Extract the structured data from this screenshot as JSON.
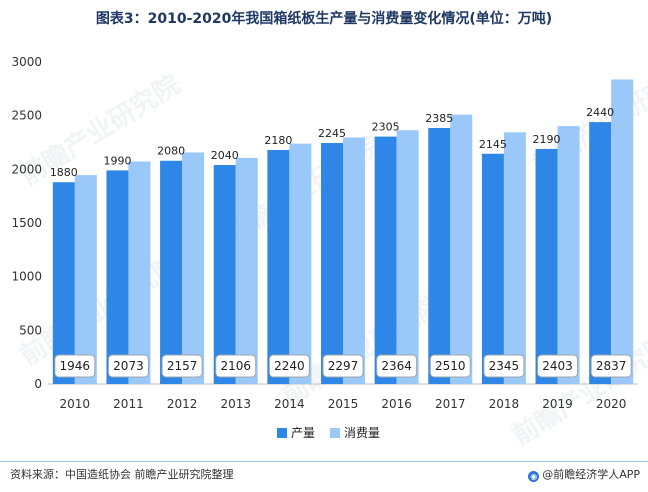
{
  "title": "图表3：2010-2020年我国箱纸板生产量与消费量变化情况(单位：万吨)",
  "source": "资料来源：中国造纸协会 前瞻产业研究院整理",
  "brand": "@前瞻经济学人APP",
  "watermark": "前瞻产业研究院",
  "colors": {
    "production": "#2e86e6",
    "consumption": "#9ac8f8",
    "axis_text": "#333333",
    "grid": "#d9d9d9"
  },
  "chart_data": {
    "type": "bar",
    "title": "图表3：2010-2020年我国箱纸板生产量与消费量变化情况(单位：万吨)",
    "xlabel": "",
    "ylabel": "万吨",
    "categories": [
      "2010",
      "2011",
      "2012",
      "2013",
      "2014",
      "2015",
      "2016",
      "2017",
      "2018",
      "2019",
      "2020"
    ],
    "ylim": [
      0,
      3000
    ],
    "yticks": [
      0,
      500,
      1000,
      1500,
      2000,
      2500,
      3000
    ],
    "series": [
      {
        "name": "产量",
        "values": [
          1880,
          1990,
          2080,
          2040,
          2180,
          2245,
          2305,
          2385,
          2145,
          2190,
          2440
        ]
      },
      {
        "name": "消费量",
        "values": [
          1946,
          2073,
          2157,
          2106,
          2240,
          2297,
          2364,
          2510,
          2345,
          2403,
          2837
        ]
      }
    ],
    "legend": "bottom-center",
    "grid": false
  }
}
